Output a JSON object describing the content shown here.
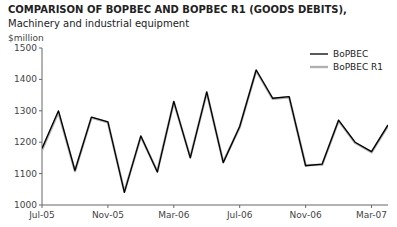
{
  "chart_data": {
    "type": "line",
    "title": "COMPARISON OF BOPBEC AND BOPBEC R1 (GOODS DEBITS),",
    "subtitle": "Machinery and industrial equipment",
    "y_label": "$million",
    "categories": [
      "Jul-05",
      null,
      null,
      null,
      "Nov-05",
      null,
      null,
      null,
      "Mar-06",
      null,
      null,
      null,
      "Jul-06",
      null,
      null,
      null,
      "Nov-06",
      null,
      null,
      null,
      "Mar-07",
      null
    ],
    "series": [
      {
        "name": "BoPBEC",
        "color": "#000000",
        "values": [
          1180,
          1300,
          1110,
          1280,
          1265,
          1040,
          1220,
          1105,
          1330,
          1150,
          1360,
          1135,
          1250,
          1430,
          1340,
          1345,
          1125,
          1130,
          1270,
          1200,
          1170,
          1255
        ]
      },
      {
        "name": "BoPBEC R1",
        "color": "#b0b0b0",
        "values": [
          1175,
          1295,
          1108,
          1278,
          1263,
          1042,
          1218,
          1107,
          1328,
          1152,
          1358,
          1137,
          1248,
          1428,
          1338,
          1343,
          1127,
          1128,
          1268,
          1198,
          1168,
          1252
        ]
      }
    ],
    "ylim": [
      1000,
      1500
    ],
    "yticks": [
      1000,
      1100,
      1200,
      1300,
      1400,
      1500
    ],
    "grid": false,
    "legend": "upper right"
  }
}
